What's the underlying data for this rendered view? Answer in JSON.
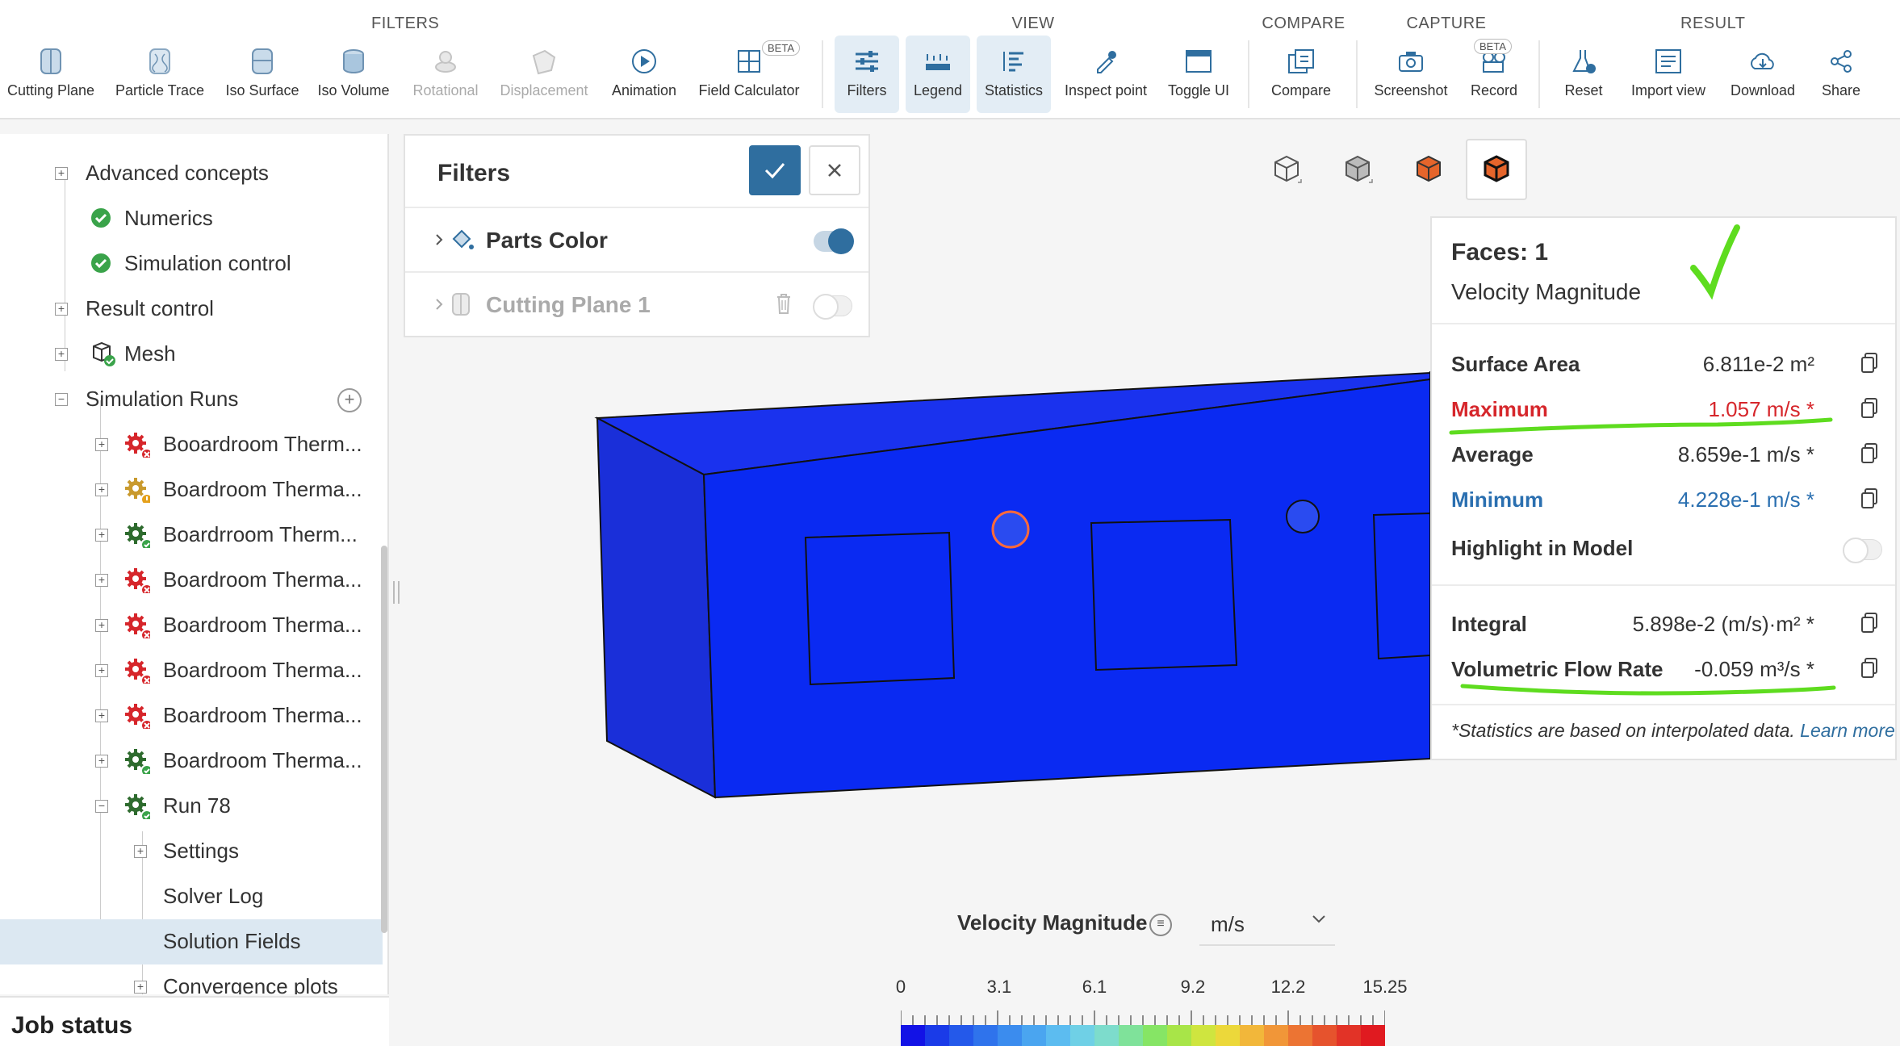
{
  "toolbar": {
    "groups": {
      "filters": "FILTERS",
      "view": "VIEW",
      "compare": "COMPARE",
      "capture": "CAPTURE",
      "result": "RESULT"
    },
    "tools": {
      "cutting_plane": "Cutting Plane",
      "particle_trace": "Particle Trace",
      "iso_surface": "Iso Surface",
      "iso_volume": "Iso Volume",
      "rotational": "Rotational",
      "displacement": "Displacement",
      "animation": "Animation",
      "field_calculator": "Field Calculator",
      "filters": "Filters",
      "legend": "Legend",
      "statistics": "Statistics",
      "inspect_point": "Inspect point",
      "toggle_ui": "Toggle UI",
      "compare": "Compare",
      "screenshot": "Screenshot",
      "record": "Record",
      "reset": "Reset",
      "import_view": "Import view",
      "download": "Download",
      "share": "Share"
    },
    "beta_label": "BETA"
  },
  "tree": {
    "items": {
      "advanced_concepts": "Advanced concepts",
      "numerics": "Numerics",
      "simulation_control": "Simulation control",
      "result_control": "Result control",
      "mesh": "Mesh",
      "simulation_runs": "Simulation Runs",
      "run1": "Booardroom Therm...",
      "run2": "Boardroom Therma...",
      "run3": "Boardrroom Therm...",
      "run4": "Boardroom Therma...",
      "run5": "Boardroom Therma...",
      "run6": "Boardroom Therma...",
      "run7": "Boardroom Therma...",
      "run8": "Boardroom Therma...",
      "run78": "Run 78",
      "settings": "Settings",
      "solver_log": "Solver Log",
      "solution_fields": "Solution Fields",
      "convergence_plots": "Convergence plots"
    },
    "job_status": "Job status"
  },
  "filters_panel": {
    "title": "Filters",
    "rows": {
      "parts_color": "Parts Color",
      "cutting_plane_1": "Cutting Plane 1"
    }
  },
  "stats": {
    "faces": "Faces: 1",
    "field": "Velocity Magnitude",
    "surface_area_label": "Surface Area",
    "surface_area_value": "6.811e-2 m²",
    "maximum_label": "Maximum",
    "maximum_value": "1.057 m/s *",
    "average_label": "Average",
    "average_value": "8.659e-1 m/s *",
    "minimum_label": "Minimum",
    "minimum_value": "4.228e-1 m/s *",
    "highlight_label": "Highlight in Model",
    "integral_label": "Integral",
    "integral_value": "5.898e-2 (m/s)·m² *",
    "flow_rate_label": "Volumetric Flow Rate",
    "flow_rate_value": "-0.059 m³/s *",
    "note": "*Statistics are based on interpolated data.",
    "learn_more": "Learn more"
  },
  "legend": {
    "title": "Velocity Magnitude",
    "unit": "m/s",
    "ticks": [
      "0",
      "3.1",
      "6.1",
      "9.2",
      "12.2",
      "15.25"
    ],
    "min": 0,
    "max": 15.25,
    "colors": [
      "#1212e6",
      "#1a3be8",
      "#2459ea",
      "#2f73ec",
      "#3b8cee",
      "#4aa5f0",
      "#5cbcf0",
      "#6fd0e6",
      "#7ddccc",
      "#7fe29a",
      "#86e565",
      "#a8e548",
      "#cfe53f",
      "#ecd83a",
      "#f2b73a",
      "#f19638",
      "#ec7433",
      "#e6532d",
      "#e23327",
      "#e01a20"
    ]
  },
  "colors": {
    "accent": "#2f6e9f",
    "model_blue": "#0a2af2",
    "red": "#d6262b",
    "blue_text": "#2a6fb0",
    "highlight_green": "#5edc1f",
    "check_green": "#3aa34a"
  }
}
